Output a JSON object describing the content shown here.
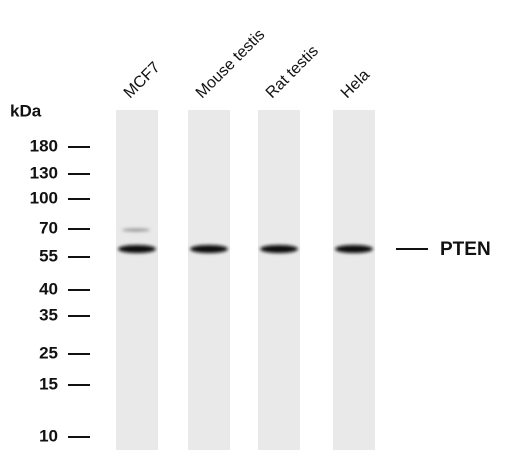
{
  "lanes": [
    "MCF7",
    "Mouse testis",
    "Rat testis",
    "Hela"
  ],
  "unit": "kDa",
  "markers": [
    180,
    130,
    100,
    70,
    55,
    40,
    35,
    25,
    15,
    10
  ],
  "band_label": "PTEN"
}
